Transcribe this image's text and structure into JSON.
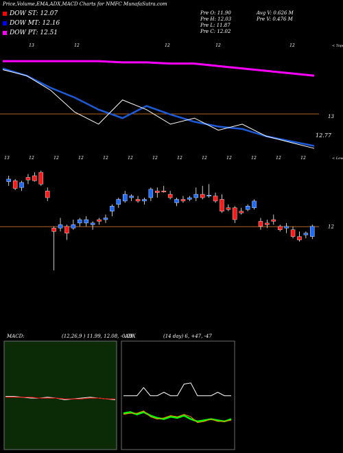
{
  "header": {
    "title": "Price,Volume,EMA,ADX,MACD Charts for NMFC MunafaSutra.com",
    "dow": [
      {
        "label": "DOW ST: 12.07",
        "color": "#ff0000"
      },
      {
        "label": "DOW MT: 12.16",
        "color": "#0000ff"
      },
      {
        "label": "DOW PT: 12.51",
        "color": "#ff00ff"
      }
    ],
    "ohlc": [
      {
        "text": "Pre   O: 11.90"
      },
      {
        "text": "Pre   H: 12.03"
      },
      {
        "text": "Pre   L: 11.87"
      },
      {
        "text": "Pre   C: 12.02"
      }
    ],
    "vol": [
      {
        "text": "Avg V: 0.626  M"
      },
      {
        "text": "Pre   V: 0.476  M"
      }
    ]
  },
  "chart_data": [
    {
      "type": "line",
      "name": "ema-panel",
      "top_ticks": [
        "13",
        "12",
        "12",
        "12",
        "12"
      ],
      "bottom_ticks": [
        "13",
        "12",
        "12",
        "12",
        "12",
        "12",
        "12",
        "12",
        "12",
        "12",
        "12",
        "12",
        "12"
      ],
      "right_label": "< Topo",
      "mid_value": "13",
      "last_value": "12.77",
      "series": [
        {
          "color": "#ff00ff",
          "values": [
            12.62,
            12.62,
            12.62,
            12.62,
            12.62,
            12.61,
            12.61,
            12.6,
            12.6,
            12.58,
            12.56,
            12.54,
            12.52,
            12.5
          ]
        },
        {
          "color": "#1e5bd8",
          "values": [
            12.56,
            12.5,
            12.4,
            12.32,
            12.22,
            12.15,
            12.25,
            12.18,
            12.12,
            12.08,
            12.06,
            12.0,
            11.96,
            11.92
          ]
        },
        {
          "color": "#ffffff",
          "values": [
            12.55,
            12.5,
            12.38,
            12.2,
            12.1,
            12.3,
            12.22,
            12.1,
            12.15,
            12.05,
            12.1,
            12.0,
            11.95,
            11.9
          ]
        }
      ]
    },
    {
      "type": "candlestick",
      "name": "price-panel",
      "top_ticks": [
        "13",
        "12",
        "12",
        "12",
        "12",
        "12",
        "12",
        "12",
        "12",
        "12",
        "12"
      ],
      "right_label": "< Lower",
      "price_line": "12",
      "candles": [
        {
          "o": 12.55,
          "h": 12.62,
          "l": 12.5,
          "c": 12.58
        },
        {
          "o": 12.56,
          "h": 12.58,
          "l": 12.45,
          "c": 12.47
        },
        {
          "o": 12.48,
          "h": 12.56,
          "l": 12.44,
          "c": 12.54
        },
        {
          "o": 12.6,
          "h": 12.64,
          "l": 12.52,
          "c": 12.57
        },
        {
          "o": 12.62,
          "h": 12.66,
          "l": 12.55,
          "c": 12.56
        },
        {
          "o": 12.66,
          "h": 12.68,
          "l": 12.5,
          "c": 12.52
        },
        {
          "o": 12.44,
          "h": 12.48,
          "l": 12.32,
          "c": 12.36
        },
        {
          "o": 12.0,
          "h": 12.02,
          "l": 11.5,
          "c": 11.96
        },
        {
          "o": 12.0,
          "h": 12.12,
          "l": 11.96,
          "c": 12.04
        },
        {
          "o": 12.02,
          "h": 12.04,
          "l": 11.86,
          "c": 11.94
        },
        {
          "o": 12.0,
          "h": 12.1,
          "l": 11.98,
          "c": 12.04
        },
        {
          "o": 12.06,
          "h": 12.12,
          "l": 12.02,
          "c": 12.1
        },
        {
          "o": 12.06,
          "h": 12.14,
          "l": 12.02,
          "c": 12.1
        },
        {
          "o": 12.04,
          "h": 12.08,
          "l": 11.98,
          "c": 12.06
        },
        {
          "o": 12.1,
          "h": 12.12,
          "l": 12.04,
          "c": 12.08
        },
        {
          "o": 12.1,
          "h": 12.16,
          "l": 12.06,
          "c": 12.12
        },
        {
          "o": 12.2,
          "h": 12.28,
          "l": 12.14,
          "c": 12.26
        },
        {
          "o": 12.28,
          "h": 12.36,
          "l": 12.24,
          "c": 12.34
        },
        {
          "o": 12.32,
          "h": 12.44,
          "l": 12.3,
          "c": 12.4
        },
        {
          "o": 12.36,
          "h": 12.4,
          "l": 12.32,
          "c": 12.38
        },
        {
          "o": 12.34,
          "h": 12.38,
          "l": 12.3,
          "c": 12.32
        },
        {
          "o": 12.32,
          "h": 12.36,
          "l": 12.28,
          "c": 12.34
        },
        {
          "o": 12.36,
          "h": 12.48,
          "l": 12.32,
          "c": 12.46
        },
        {
          "o": 12.44,
          "h": 12.48,
          "l": 12.36,
          "c": 12.42
        },
        {
          "o": 12.44,
          "h": 12.5,
          "l": 12.42,
          "c": 12.43
        },
        {
          "o": 12.4,
          "h": 12.44,
          "l": 12.34,
          "c": 12.36
        },
        {
          "o": 12.3,
          "h": 12.36,
          "l": 12.26,
          "c": 12.34
        },
        {
          "o": 12.34,
          "h": 12.38,
          "l": 12.3,
          "c": 12.32
        },
        {
          "o": 12.34,
          "h": 12.38,
          "l": 12.32,
          "c": 12.36
        },
        {
          "o": 12.36,
          "h": 12.48,
          "l": 12.32,
          "c": 12.4
        },
        {
          "o": 12.4,
          "h": 12.5,
          "l": 12.34,
          "c": 12.36
        },
        {
          "o": 12.38,
          "h": 12.52,
          "l": 12.36,
          "c": 12.39
        },
        {
          "o": 12.38,
          "h": 12.42,
          "l": 12.3,
          "c": 12.32
        },
        {
          "o": 12.34,
          "h": 12.4,
          "l": 12.18,
          "c": 12.2
        },
        {
          "o": 12.24,
          "h": 12.28,
          "l": 12.2,
          "c": 12.22
        },
        {
          "o": 12.24,
          "h": 12.26,
          "l": 12.06,
          "c": 12.1
        },
        {
          "o": 12.2,
          "h": 12.24,
          "l": 12.16,
          "c": 12.18
        },
        {
          "o": 12.22,
          "h": 12.28,
          "l": 12.2,
          "c": 12.26
        },
        {
          "o": 12.24,
          "h": 12.34,
          "l": 12.22,
          "c": 12.32
        },
        {
          "o": 12.08,
          "h": 12.12,
          "l": 11.98,
          "c": 12.02
        },
        {
          "o": 12.06,
          "h": 12.1,
          "l": 12.0,
          "c": 12.04
        },
        {
          "o": 12.1,
          "h": 12.16,
          "l": 12.04,
          "c": 12.08
        },
        {
          "o": 12.02,
          "h": 12.04,
          "l": 11.96,
          "c": 11.98
        },
        {
          "o": 12.0,
          "h": 12.06,
          "l": 11.94,
          "c": 12.02
        },
        {
          "o": 11.98,
          "h": 12.02,
          "l": 11.88,
          "c": 11.9
        },
        {
          "o": 11.9,
          "h": 11.96,
          "l": 11.84,
          "c": 11.86
        },
        {
          "o": 11.92,
          "h": 11.96,
          "l": 11.88,
          "c": 11.94
        },
        {
          "o": 11.9,
          "h": 12.04,
          "l": 11.87,
          "c": 12.02
        }
      ]
    },
    {
      "type": "line",
      "name": "macd-panel",
      "label": "MACD:",
      "params": "(12,26,9 ) 11.99, 12.08, -0.09",
      "background": "#0b2a06",
      "series": [
        {
          "color": "#ffffff",
          "values": [
            0.02,
            0.02,
            0.01,
            0.0,
            0.0,
            0.01,
            0.0,
            -0.02,
            -0.01,
            0.0,
            0.01,
            0.0,
            -0.01,
            -0.02
          ]
        },
        {
          "color": "#ff0000",
          "values": [
            0.01,
            0.01,
            0.01,
            0.01,
            0.0,
            0.0,
            0.0,
            -0.01,
            -0.01,
            -0.01,
            0.0,
            0.0,
            -0.01,
            -0.01
          ]
        }
      ]
    },
    {
      "type": "line",
      "name": "adx-panel",
      "label": "ADX",
      "params": "(14  day) 6, +47, -47",
      "series": [
        {
          "color": "#ffffff",
          "values": [
            2,
            2,
            2,
            9,
            2,
            2,
            5,
            2,
            2,
            12,
            13,
            2,
            2,
            2,
            5,
            2,
            2
          ]
        },
        {
          "color": "#00ff00",
          "values": [
            -13,
            -12,
            -14,
            -12,
            -15,
            -17,
            -18,
            -16,
            -17,
            -15,
            -18,
            -20,
            -19,
            -18,
            -19,
            -20,
            -18
          ]
        },
        {
          "color": "#ff8800",
          "values": [
            -14,
            -13,
            -13,
            -11,
            -16,
            -18,
            -17,
            -15,
            -16,
            -14,
            -16,
            -21,
            -20,
            -18,
            -20,
            -20,
            -19
          ]
        }
      ]
    }
  ]
}
